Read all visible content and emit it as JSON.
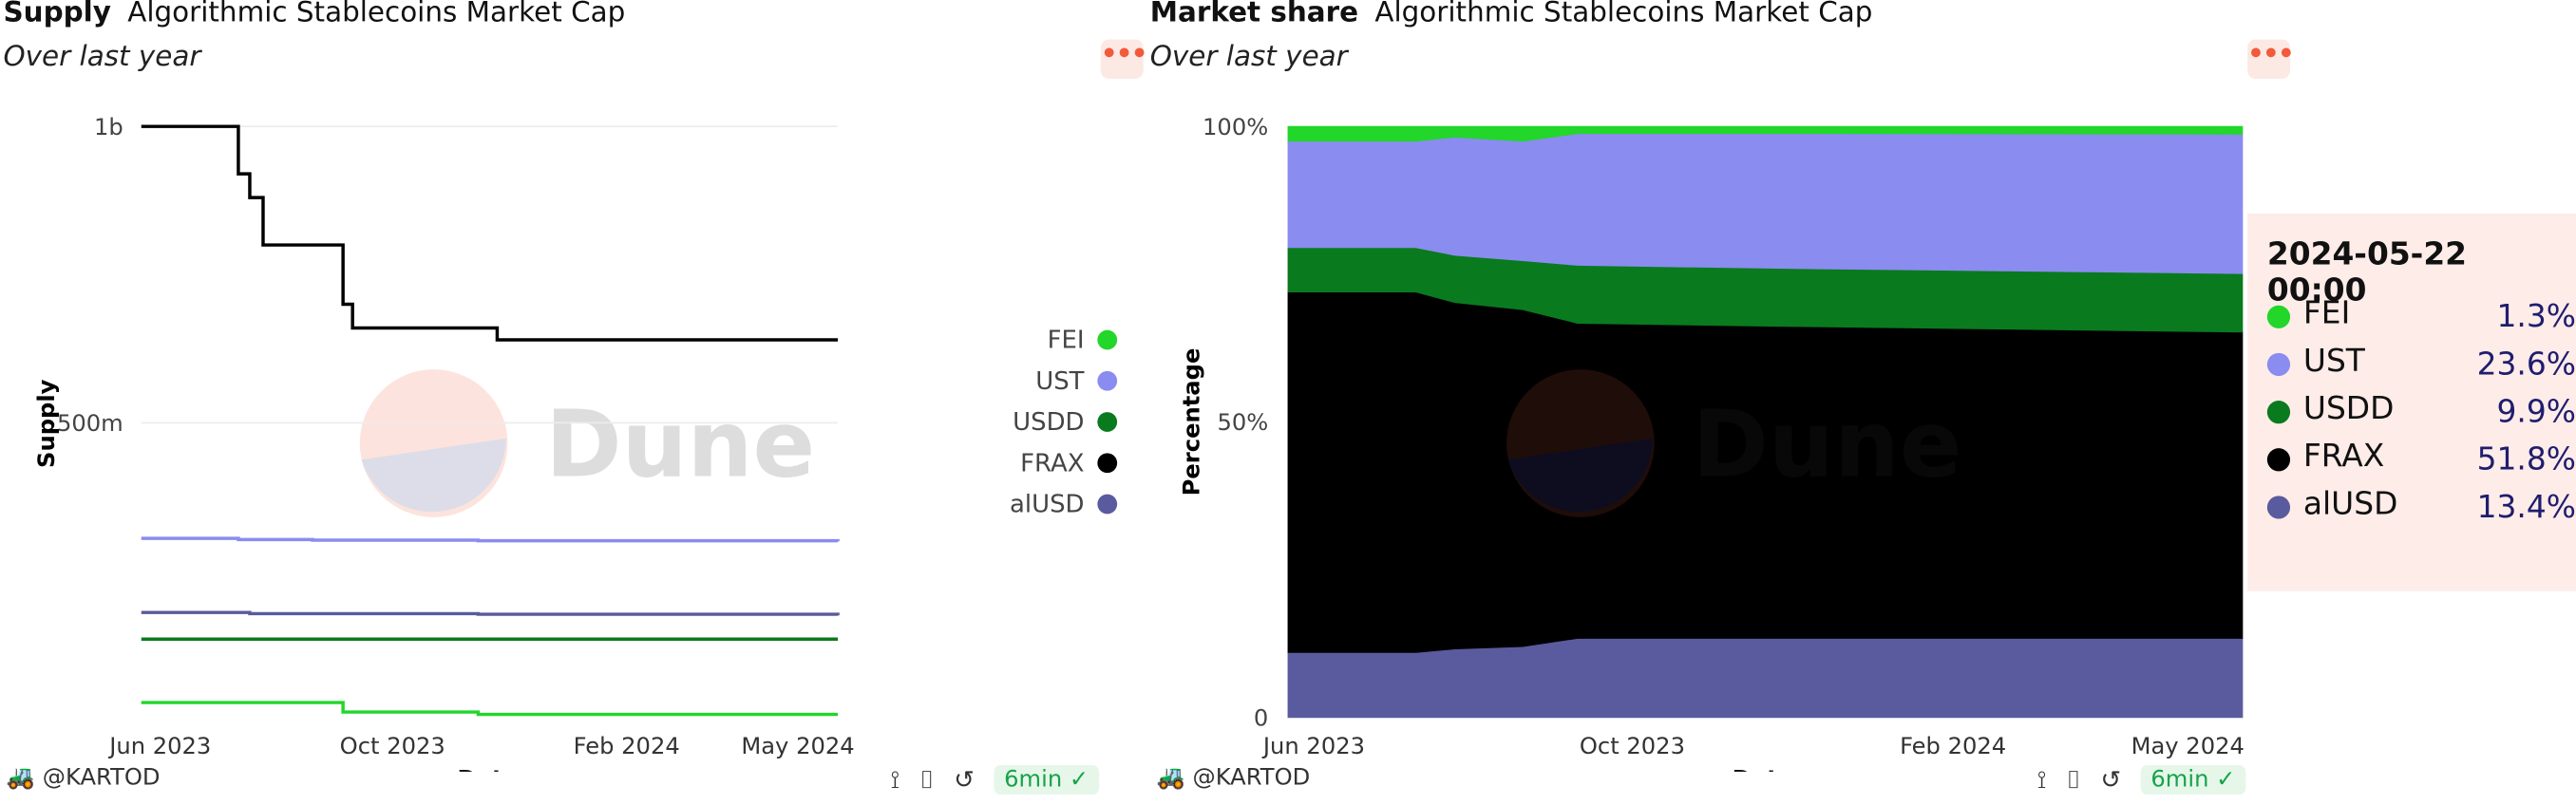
{
  "footer": {
    "user": "@KARTOD",
    "refresh": "6min"
  },
  "legend": {
    "items": [
      {
        "name": "FEI",
        "color": "#22d62a"
      },
      {
        "name": "UST",
        "color": "#8a8cf0"
      },
      {
        "name": "USDD",
        "color": "#0a7a1e"
      },
      {
        "name": "FRAX",
        "color": "#000000"
      },
      {
        "name": "alUSD",
        "color": "#5a5a9e"
      }
    ]
  },
  "watermark": "Dune",
  "chart_data": [
    {
      "type": "line",
      "title": "Supply",
      "subtitle": "Algorithmic Stablecoins Market Cap",
      "period": "Over last year",
      "xlabel": "Date",
      "ylabel": "Supply",
      "x_ticks": [
        "Jun 2023",
        "Oct 2023",
        "Feb 2024",
        "May 2024"
      ],
      "y_ticks": [
        {
          "label": "1b",
          "value": 1000000000
        },
        {
          "label": "500m",
          "value": 500000000
        }
      ],
      "ylim": [
        0,
        1000000000
      ],
      "x": [
        "2023-05-22",
        "2023-07-10",
        "2023-07-12",
        "2023-07-18",
        "2023-07-25",
        "2023-08-20",
        "2023-09-05",
        "2023-09-10",
        "2023-11-15",
        "2023-11-25",
        "2024-05-22"
      ],
      "series": [
        {
          "name": "FRAX",
          "color": "#000000",
          "values": [
            1000000000,
            1000000000,
            920000000,
            880000000,
            800000000,
            800000000,
            700000000,
            660000000,
            660000000,
            640000000,
            640000000
          ]
        },
        {
          "name": "UST",
          "color": "#8a8cf0",
          "values": [
            305000000,
            305000000,
            303000000,
            303000000,
            303000000,
            302000000,
            302000000,
            302000000,
            301000000,
            301000000,
            300000000
          ]
        },
        {
          "name": "alUSD",
          "color": "#5a5a9e",
          "values": [
            180000000,
            180000000,
            180000000,
            178000000,
            178000000,
            178000000,
            178000000,
            178000000,
            177000000,
            177000000,
            175000000
          ]
        },
        {
          "name": "USDD",
          "color": "#0a7a1e",
          "values": [
            135000000,
            135000000,
            135000000,
            135000000,
            135000000,
            135000000,
            135000000,
            135000000,
            135000000,
            135000000,
            135000000
          ]
        },
        {
          "name": "FEI",
          "color": "#22d62a",
          "values": [
            28000000,
            28000000,
            28000000,
            28000000,
            28000000,
            28000000,
            12000000,
            12000000,
            8000000,
            8000000,
            8000000
          ]
        }
      ]
    },
    {
      "type": "area",
      "title": "Market share",
      "subtitle": "Algorithmic Stablecoins Market Cap",
      "period": "Over last year",
      "xlabel": "Date",
      "ylabel": "Percentage",
      "stacked": "percent",
      "x_ticks": [
        "Jun 2023",
        "Oct 2023",
        "Feb 2024",
        "May 2024"
      ],
      "y_ticks": [
        "0",
        "50%",
        "100%"
      ],
      "ylim": [
        0,
        100
      ],
      "x": [
        "2023-05-22",
        "2023-07-10",
        "2023-07-25",
        "2023-08-20",
        "2023-09-10",
        "2023-11-25",
        "2024-05-22"
      ],
      "series": [
        {
          "name": "alUSD",
          "color": "#5a5a9e",
          "values": [
            11.0,
            11.0,
            11.6,
            12.0,
            13.4,
            13.4,
            13.4
          ]
        },
        {
          "name": "FRAX",
          "color": "#000000",
          "values": [
            61.0,
            61.0,
            58.6,
            57.0,
            53.3,
            52.8,
            51.8
          ]
        },
        {
          "name": "USDD",
          "color": "#0a7a1e",
          "values": [
            7.5,
            7.5,
            8.0,
            8.3,
            9.8,
            9.8,
            9.9
          ]
        },
        {
          "name": "UST",
          "color": "#8a8cf0",
          "values": [
            18.0,
            18.0,
            20.0,
            20.2,
            22.3,
            22.8,
            23.6
          ]
        },
        {
          "name": "FEI",
          "color": "#22d62a",
          "values": [
            2.5,
            2.5,
            1.8,
            2.5,
            1.2,
            1.2,
            1.3
          ]
        }
      ],
      "tooltip": {
        "date": "2024-05-22 00:00",
        "rows": [
          {
            "name": "FEI",
            "value": "1.3%",
            "color": "#22d62a"
          },
          {
            "name": "UST",
            "value": "23.6%",
            "color": "#8a8cf0"
          },
          {
            "name": "USDD",
            "value": "9.9%",
            "color": "#0a7a1e"
          },
          {
            "name": "FRAX",
            "value": "51.8%",
            "color": "#000000"
          },
          {
            "name": "alUSD",
            "value": "13.4%",
            "color": "#5a5a9e"
          }
        ]
      }
    }
  ]
}
